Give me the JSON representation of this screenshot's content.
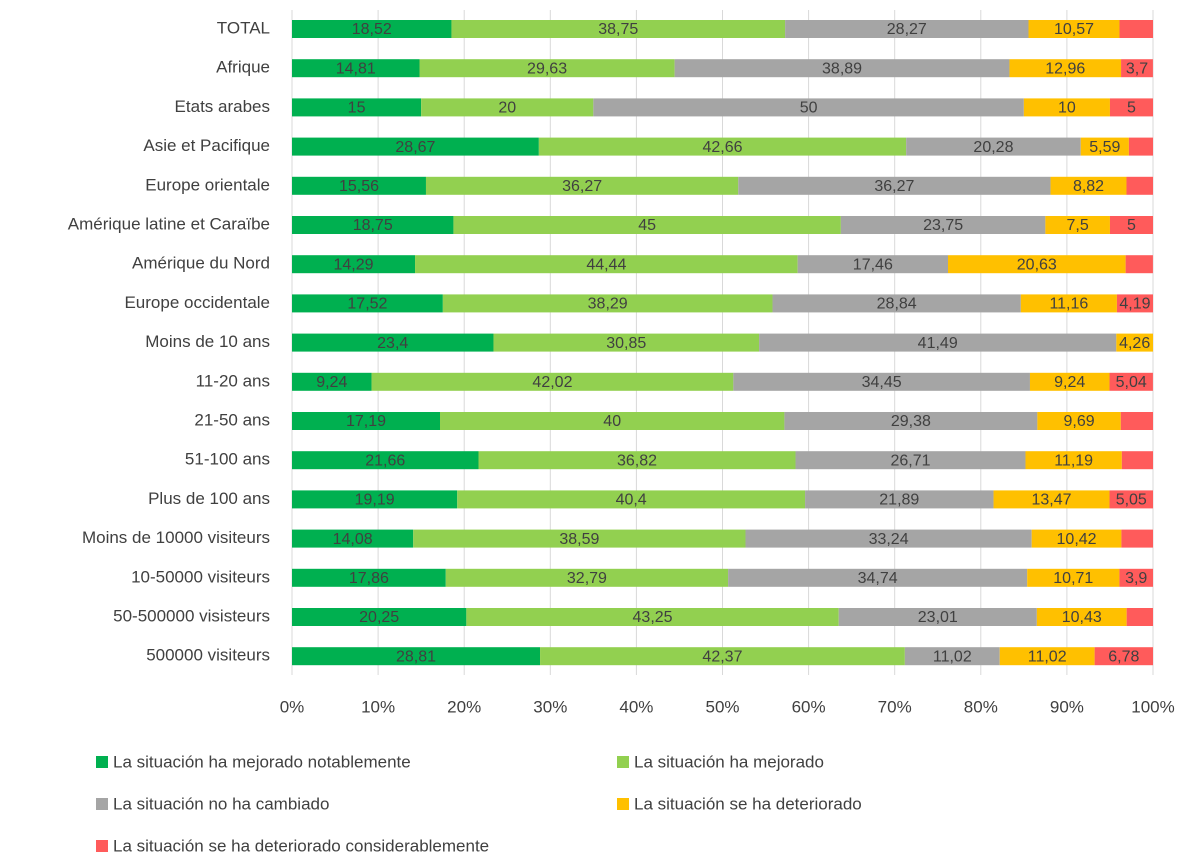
{
  "chart_data": {
    "type": "stacked-bar-horizontal",
    "categories": [
      "TOTAL",
      "Afrique",
      "Etats arabes",
      "Asie et Pacifique",
      "Europe orientale",
      "Amérique latine et Caraïbe",
      "Amérique du Nord",
      "Europe occidentale",
      "Moins de 10 ans",
      "11-20 ans",
      "21-50 ans",
      "51-100 ans",
      "Plus de 100 ans",
      "Moins de 10000 visiteurs",
      "10-50000 visiteurs",
      "50-500000 visisteurs",
      "500000 visiteurs"
    ],
    "series": [
      {
        "name": "La situación ha mejorado notablemente",
        "color": "#00b050",
        "values": [
          18.52,
          14.81,
          15,
          28.67,
          15.56,
          18.75,
          14.29,
          17.52,
          23.4,
          9.24,
          17.19,
          21.66,
          19.19,
          14.08,
          17.86,
          20.25,
          28.81
        ],
        "value_labels": [
          "18,52",
          "14,81",
          "15",
          "28,67",
          "15,56",
          "18,75",
          "14,29",
          "17,52",
          "23,4",
          "9,24",
          "17,19",
          "21,66",
          "19,19",
          "14,08",
          "17,86",
          "20,25",
          "28,81"
        ]
      },
      {
        "name": "La situación ha mejorado",
        "color": "#92d050",
        "values": [
          38.75,
          29.63,
          20,
          42.66,
          36.27,
          45,
          44.44,
          38.29,
          30.85,
          42.02,
          40,
          36.82,
          40.4,
          38.59,
          32.79,
          43.25,
          42.37
        ],
        "value_labels": [
          "38,75",
          "29,63",
          "20",
          "42,66",
          "36,27",
          "45",
          "44,44",
          "38,29",
          "30,85",
          "42,02",
          "40",
          "36,82",
          "40,4",
          "38,59",
          "32,79",
          "43,25",
          "42,37"
        ]
      },
      {
        "name": "La situación no ha cambiado",
        "color": "#a5a5a5",
        "values": [
          28.27,
          38.89,
          50,
          20.28,
          36.27,
          23.75,
          17.46,
          28.84,
          41.49,
          34.45,
          29.38,
          26.71,
          21.89,
          33.24,
          34.74,
          23.01,
          11.02
        ],
        "value_labels": [
          "28,27",
          "38,89",
          "50",
          "20,28",
          "36,27",
          "23,75",
          "17,46",
          "28,84",
          "41,49",
          "34,45",
          "29,38",
          "26,71",
          "21,89",
          "33,24",
          "34,74",
          "23,01",
          "11,02"
        ]
      },
      {
        "name": "La situación se ha deteriorado",
        "color": "#ffc000",
        "values": [
          10.57,
          12.96,
          10,
          5.59,
          8.82,
          7.5,
          20.63,
          11.16,
          4.26,
          9.24,
          9.69,
          11.19,
          13.47,
          10.42,
          10.71,
          10.43,
          11.02
        ],
        "value_labels": [
          "10,57",
          "12,96",
          "10",
          "5,59",
          "8,82",
          "7,5",
          "20,63",
          "11,16",
          "4,26",
          "9,24",
          "9,69",
          "11,19",
          "13,47",
          "10,42",
          "10,71",
          "10,43",
          "11,02"
        ]
      },
      {
        "name": "La situación se ha deteriorado considerablemente",
        "color": "#ff5b5b",
        "values": [
          3.89,
          3.7,
          5,
          2.8,
          3.08,
          5,
          3.17,
          4.19,
          0,
          5.04,
          3.74,
          3.62,
          5.05,
          3.67,
          3.9,
          3.06,
          6.78
        ],
        "value_labels": [
          null,
          "3,7",
          "5",
          null,
          null,
          "5",
          null,
          "4,19",
          null,
          "5,04",
          null,
          null,
          "5,05",
          null,
          "3,9",
          null,
          "6,78"
        ]
      }
    ],
    "xlim": [
      0,
      100
    ],
    "xticks": [
      {
        "value": 0,
        "label": "0%"
      },
      {
        "value": 10,
        "label": "10%"
      },
      {
        "value": 20,
        "label": "20%"
      },
      {
        "value": 30,
        "label": "30%"
      },
      {
        "value": 40,
        "label": "40%"
      },
      {
        "value": 50,
        "label": "50%"
      },
      {
        "value": 60,
        "label": "60%"
      },
      {
        "value": 70,
        "label": "70%"
      },
      {
        "value": 80,
        "label": "80%"
      },
      {
        "value": 90,
        "label": "90%"
      },
      {
        "value": 100,
        "label": "100%"
      }
    ],
    "grid": true
  }
}
